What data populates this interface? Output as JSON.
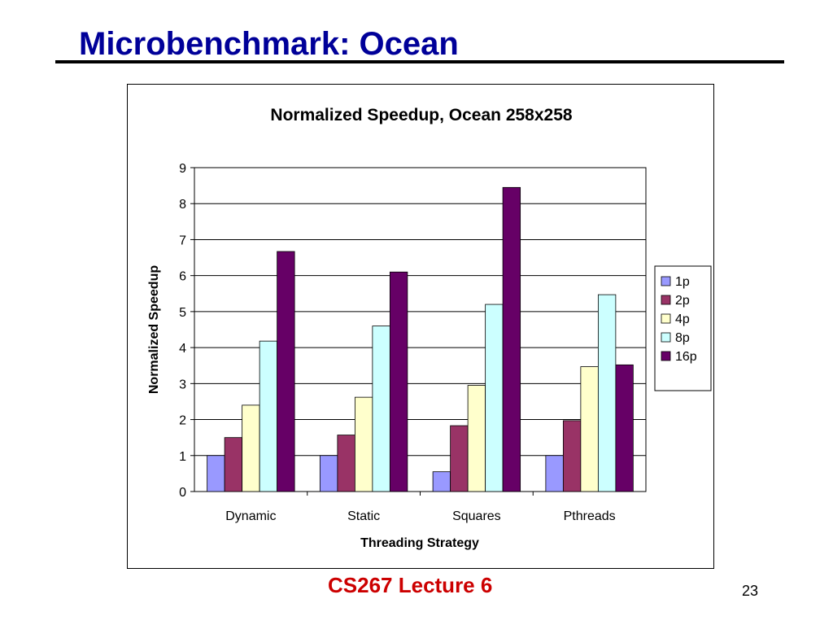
{
  "slide": {
    "title": "Microbenchmark: Ocean",
    "footer": "CS267 Lecture 6",
    "page_number": "23"
  },
  "chart_data": {
    "type": "bar",
    "title": "Normalized Speedup, Ocean 258x258",
    "xlabel": "Threading Strategy",
    "ylabel": "Normalized Speedup",
    "ylim": [
      0,
      9
    ],
    "yticks": [
      "0",
      "1",
      "2",
      "3",
      "4",
      "5",
      "6",
      "7",
      "8",
      "9"
    ],
    "grid": true,
    "legend_position": "right",
    "categories": [
      "Dynamic",
      "Static",
      "Squares",
      "Pthreads"
    ],
    "series": [
      {
        "name": "1p",
        "color": "#9999ff",
        "values": [
          1.0,
          1.0,
          0.55,
          1.0
        ]
      },
      {
        "name": "2p",
        "color": "#993366",
        "values": [
          1.5,
          1.57,
          1.83,
          1.97
        ]
      },
      {
        "name": "4p",
        "color": "#ffffcc",
        "values": [
          2.4,
          2.62,
          2.95,
          3.47
        ]
      },
      {
        "name": "8p",
        "color": "#ccffff",
        "values": [
          4.18,
          4.6,
          5.2,
          5.47
        ]
      },
      {
        "name": "16p",
        "color": "#660066",
        "values": [
          6.67,
          6.1,
          8.45,
          3.52
        ]
      }
    ]
  }
}
